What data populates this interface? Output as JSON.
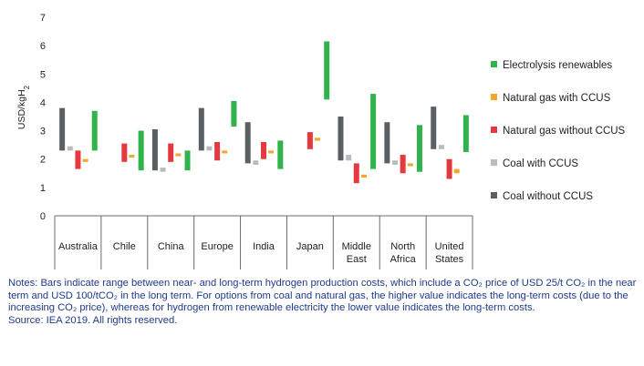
{
  "chart_data": {
    "type": "floating-bar",
    "ylabel": "USD/kgH2",
    "ylim": [
      0,
      7
    ],
    "yticks": [
      0,
      1,
      2,
      3,
      4,
      5,
      6,
      7
    ],
    "categories": [
      "Australia",
      "Chile",
      "China",
      "Europe",
      "India",
      "Japan",
      "Middle East",
      "North Africa",
      "United States"
    ],
    "category_lines": [
      [
        "Australia"
      ],
      [
        "Chile"
      ],
      [
        "China"
      ],
      [
        "Europe"
      ],
      [
        "India"
      ],
      [
        "Japan"
      ],
      [
        "Middle",
        "East"
      ],
      [
        "North",
        "Africa"
      ],
      [
        "United",
        "States"
      ]
    ],
    "series": [
      {
        "name": "Coal without CCUS",
        "color": "#5a5f63",
        "ranges": [
          [
            2.3,
            3.8
          ],
          null,
          [
            1.6,
            3.05
          ],
          [
            2.3,
            3.8
          ],
          [
            1.85,
            3.3
          ],
          null,
          [
            1.95,
            3.5
          ],
          [
            1.85,
            3.3
          ],
          [
            2.35,
            3.85
          ]
        ]
      },
      {
        "name": "Coal with CCUS",
        "color": "#b8bcbd",
        "ranges": [
          [
            2.3,
            2.45
          ],
          null,
          [
            1.55,
            1.7
          ],
          [
            2.3,
            2.45
          ],
          [
            1.8,
            1.95
          ],
          null,
          [
            1.95,
            2.15
          ],
          [
            1.8,
            1.95
          ],
          [
            2.35,
            2.5
          ]
        ]
      },
      {
        "name": "Natural gas without CCUS",
        "color": "#e5383f",
        "ranges": [
          [
            1.65,
            2.3
          ],
          [
            1.9,
            2.55
          ],
          [
            1.9,
            2.55
          ],
          [
            1.95,
            2.6
          ],
          [
            2.0,
            2.6
          ],
          [
            2.35,
            2.95
          ],
          [
            1.15,
            1.85
          ],
          [
            1.5,
            2.15
          ],
          [
            1.3,
            2.0
          ]
        ]
      },
      {
        "name": "Natural gas with CCUS",
        "color": "#f2a62a",
        "ranges": [
          [
            1.9,
            2.0
          ],
          [
            2.05,
            2.15
          ],
          [
            2.1,
            2.2
          ],
          [
            2.2,
            2.3
          ],
          [
            2.2,
            2.3
          ],
          [
            2.65,
            2.75
          ],
          [
            1.35,
            1.45
          ],
          [
            1.75,
            1.85
          ],
          [
            1.5,
            1.65
          ]
        ]
      },
      {
        "name": "Electrolysis renewables",
        "color": "#2fb34a",
        "ranges": [
          [
            2.3,
            3.7
          ],
          [
            1.6,
            3.0
          ],
          [
            1.6,
            2.3
          ],
          [
            3.15,
            4.05
          ],
          [
            1.65,
            2.65
          ],
          [
            4.1,
            6.15
          ],
          [
            1.65,
            4.3
          ],
          [
            1.55,
            3.2
          ],
          [
            2.25,
            3.55
          ]
        ]
      }
    ],
    "legend": {
      "position": "right",
      "order": [
        "Electrolysis renewables",
        "Natural gas with CCUS",
        "Natural gas without CCUS",
        "Coal with CCUS",
        "Coal without CCUS"
      ]
    },
    "grid": false
  },
  "notes": {
    "text": "Notes: Bars indicate range between near- and long-term hydrogen production costs, which include a CO₂ price of USD 25/t CO₂ in the near term and USD 100/tCO₂ in the long term. For options from coal and natural gas, the higher value indicates the long-term costs (due to the increasing CO₂ price), whereas for hydrogen from renewable electricity the lower value indicates the long-term costs.",
    "source": "Source: IEA 2019. All rights reserved."
  }
}
